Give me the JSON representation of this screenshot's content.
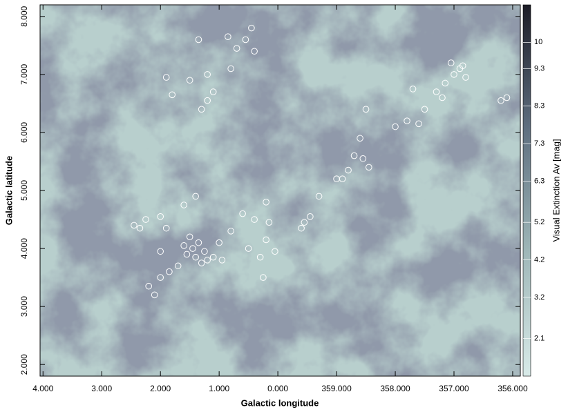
{
  "chart_data": {
    "type": "scatter",
    "xlabel": "Galactic longitude",
    "ylabel": "Galactic latitude",
    "xlim": [
      4.05,
      355.87
    ],
    "ylim": [
      1.8,
      8.2
    ],
    "xticks": [
      {
        "value": 4,
        "label": "4.000"
      },
      {
        "value": 3,
        "label": "3.000"
      },
      {
        "value": 2,
        "label": "2.000"
      },
      {
        "value": 1,
        "label": "1.000"
      },
      {
        "value": 0,
        "label": "0.000"
      },
      {
        "value": 359,
        "label": "359.000"
      },
      {
        "value": 358,
        "label": "358.000"
      },
      {
        "value": 357,
        "label": "357.000"
      },
      {
        "value": 356,
        "label": "356.000"
      }
    ],
    "yticks": [
      {
        "value": 2,
        "label": "2.000"
      },
      {
        "value": 3,
        "label": "3.000"
      },
      {
        "value": 4,
        "label": "4.000"
      },
      {
        "value": 5,
        "label": "5.000"
      },
      {
        "value": 6,
        "label": "6.000"
      },
      {
        "value": 7,
        "label": "7.000"
      },
      {
        "value": 8,
        "label": "8.000"
      }
    ],
    "color": "#ffffff",
    "x": [
      1.45,
      1.35,
      1.25,
      1.2,
      1.4,
      1.55,
      1.3,
      1.1,
      1.6,
      1.5,
      1.0,
      0.95,
      1.7,
      1.85,
      2.0,
      2.45,
      2.35,
      2.25,
      2.0,
      1.6,
      1.4,
      2.2,
      2.1,
      2.0,
      1.9,
      1.3,
      1.2,
      1.1,
      1.5,
      1.8,
      1.2,
      0.8,
      0.7,
      0.55,
      0.4,
      0.45,
      0.85,
      1.35,
      1.9,
      0.8,
      0.6,
      0.4,
      0.15,
      0.2,
      0.05,
      0.3,
      0.5,
      0.25,
      359.6,
      359.45,
      359.3,
      359.55,
      359.0,
      0.2,
      358.8,
      358.7,
      358.6,
      358.55,
      358.45,
      358.9,
      358.5,
      358.0,
      357.8,
      357.6,
      357.5,
      357.3,
      357.15,
      357.0,
      356.9,
      357.05,
      356.8,
      356.85,
      357.2,
      357.7,
      356.2,
      356.1
    ],
    "values": [
      4.0,
      4.1,
      3.95,
      3.8,
      3.85,
      3.9,
      3.75,
      3.85,
      4.05,
      4.2,
      4.1,
      3.8,
      3.7,
      3.6,
      3.5,
      4.4,
      4.35,
      4.5,
      4.55,
      4.75,
      4.9,
      3.35,
      3.2,
      3.95,
      4.35,
      6.4,
      6.55,
      6.7,
      6.9,
      6.65,
      7.0,
      7.1,
      7.45,
      7.6,
      7.4,
      7.8,
      7.65,
      7.6,
      6.95,
      4.3,
      4.6,
      4.5,
      4.45,
      4.15,
      3.95,
      3.85,
      4.0,
      3.5,
      4.35,
      4.55,
      4.9,
      4.45,
      5.2,
      4.8,
      5.35,
      5.6,
      5.9,
      5.55,
      5.4,
      5.2,
      6.4,
      6.1,
      6.2,
      6.15,
      6.4,
      6.7,
      6.85,
      7.0,
      7.1,
      7.2,
      6.95,
      7.15,
      6.6,
      6.75,
      6.55,
      6.6
    ],
    "colorbar": {
      "label": "Visual Extinction Av [mag]",
      "clim": [
        1.1,
        11.0
      ],
      "ticks": [
        2.1,
        3.2,
        4.2,
        5.2,
        6.3,
        7.3,
        8.3,
        9.3,
        10
      ],
      "colors": [
        "#d8eae8",
        "#9fb7b8",
        "#5f6f80",
        "#1c1c26"
      ]
    }
  }
}
